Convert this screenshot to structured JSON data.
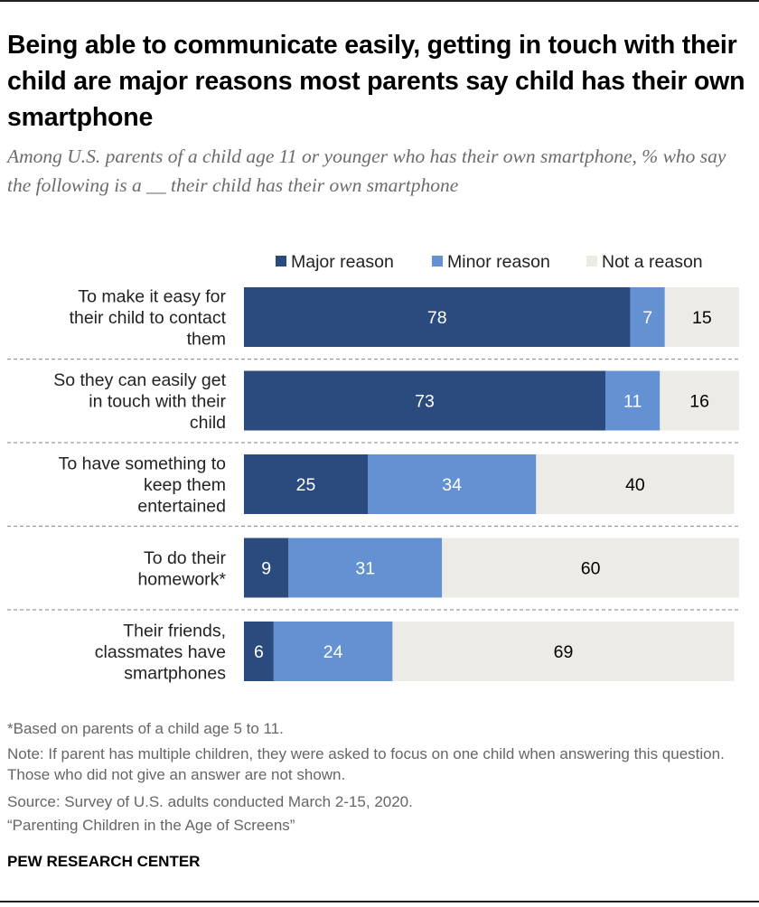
{
  "title": "Being able to communicate easily, getting in touch with their child are major reasons most parents say child has their own smartphone",
  "subtitle": "Among U.S. parents of a child age 11 or younger who has their own smartphone, % who say the following is a __ their child has their own smartphone",
  "legend": [
    {
      "label": "Major reason",
      "color": "#2b4b7e"
    },
    {
      "label": "Minor reason",
      "color": "#6491d2"
    },
    {
      "label": "Not a reason",
      "color": "#ecebe6"
    }
  ],
  "chart_data": {
    "type": "bar",
    "orientation": "horizontal",
    "stacked": true,
    "categories": [
      [
        "To make it easy for",
        "their child to contact",
        "them"
      ],
      [
        "So they can easily get",
        "in touch with their",
        "child"
      ],
      [
        "To have something to",
        "keep them",
        "entertained"
      ],
      [
        "To do their",
        "homework*"
      ],
      [
        "Their friends,",
        "classmates have",
        "smartphones"
      ]
    ],
    "series": [
      {
        "name": "Major reason",
        "color": "#2b4b7e",
        "label_color": "#ffffff",
        "values": [
          78,
          73,
          25,
          9,
          6
        ]
      },
      {
        "name": "Minor reason",
        "color": "#6491d2",
        "label_color": "#ffffff",
        "values": [
          7,
          11,
          34,
          31,
          24
        ]
      },
      {
        "name": "Not a reason",
        "color": "#ecebe6",
        "label_color": "#000000",
        "values": [
          15,
          16,
          40,
          60,
          69
        ]
      }
    ],
    "xlim": [
      0,
      100
    ],
    "legend_position": "top",
    "grid": false
  },
  "notes": [
    "*Based on parents of a child age 5 to 11.",
    "Note: If parent has multiple children, they were asked to focus on one child when answering this question. Those who did not give an answer are not shown.",
    "Source: Survey of U.S. adults conducted March 2-15, 2020.",
    "“Parenting Children in the Age of Screens”"
  ],
  "brand": "PEW RESEARCH CENTER"
}
